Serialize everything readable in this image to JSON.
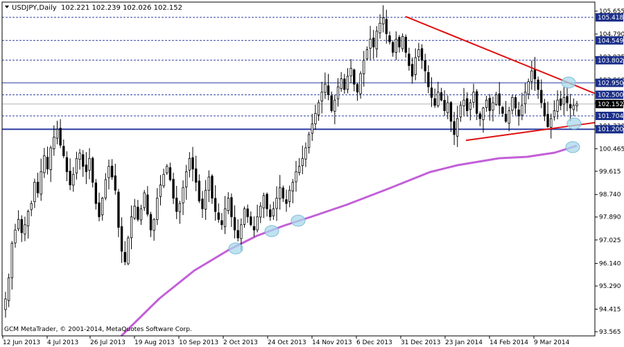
{
  "header": {
    "symbol": "USDJPY,Daily",
    "ohlc": "102.221 102.239 102.026 102.152"
  },
  "footer": {
    "copyright": "GCM MetaTrader, © 2001-2014, MetaQuotes Software Corp."
  },
  "colors": {
    "background": "#ffffff",
    "candle": "#000000",
    "moving_average": "#c35fd8",
    "triangle": "#e01010",
    "support_resistance": "#2b3fa0",
    "highlight": "#a8d8ea",
    "level_label_bg": "#1a2f8a",
    "current_price_bg": "#000000"
  },
  "chart_data": {
    "type": "candlestick",
    "x_ticks": [
      {
        "label": "12 Jun 2013",
        "date": "2013-06-12"
      },
      {
        "label": "4 Jul 2013",
        "date": "2013-07-04"
      },
      {
        "label": "26 Jul 2013",
        "date": "2013-07-26"
      },
      {
        "label": "19 Aug 2013",
        "date": "2013-08-19"
      },
      {
        "label": "10 Sep 2013",
        "date": "2013-09-10"
      },
      {
        "label": "2 Oct 2013",
        "date": "2013-10-02"
      },
      {
        "label": "24 Oct 2013",
        "date": "2013-10-24"
      },
      {
        "label": "14 Nov 2013",
        "date": "2013-11-14"
      },
      {
        "label": "6 Dec 2013",
        "date": "2013-12-06"
      },
      {
        "label": "31 Dec 2013",
        "date": "2013-12-31"
      },
      {
        "label": "23 Jan 2014",
        "date": "2014-01-23"
      },
      {
        "label": "14 Feb 2014",
        "date": "2014-02-14"
      },
      {
        "label": "9 Mar 2014",
        "date": "2014-03-09"
      }
    ],
    "y_ticks": [
      "105.655",
      "104.790",
      "103.925",
      "103.060",
      "102.195",
      "101.330",
      "100.465",
      "99.615",
      "98.740",
      "97.890",
      "97.025",
      "96.140",
      "95.290",
      "94.415",
      "93.565"
    ],
    "ylim": [
      93.565,
      105.655
    ],
    "level_labels": [
      {
        "value": 105.418,
        "label": "105.418"
      },
      {
        "value": 104.549,
        "label": "104.549"
      },
      {
        "value": 103.802,
        "label": "103.802"
      },
      {
        "value": 102.95,
        "label": "102.950"
      },
      {
        "value": 102.5,
        "label": "102.500"
      },
      {
        "value": 101.704,
        "label": "101.704"
      },
      {
        "value": 101.2,
        "label": "101.200"
      }
    ],
    "dashed_levels": [
      105.418,
      104.549,
      103.802,
      102.5,
      101.704
    ],
    "solid_levels": [
      102.95,
      101.2
    ],
    "current_price": {
      "value": 102.152,
      "label": "102.152"
    },
    "candles_daily_closes_approx": [
      94.8,
      95.6,
      96.9,
      97.4,
      97.8,
      97.3,
      97.6,
      98.1,
      98.4,
      99.2,
      98.8,
      99.6,
      100.2,
      99.7,
      100.5,
      100.9,
      101.2,
      100.6,
      100.2,
      99.6,
      99.1,
      99.5,
      100.1,
      100.3,
      99.8,
      99.6,
      100.1,
      99.2,
      98.4,
      97.9,
      98.6,
      99.3,
      99.8,
      99.4,
      98.9,
      97.5,
      96.6,
      96.2,
      97.1,
      97.9,
      98.3,
      97.8,
      98.2,
      98.8,
      98.0,
      97.4,
      97.8,
      98.6,
      99.1,
      99.5,
      99.8,
      99.3,
      98.6,
      98.1,
      98.4,
      99.0,
      99.6,
      100.1,
      99.7,
      99.2,
      98.5,
      98.2,
      98.9,
      99.4,
      98.6,
      98.1,
      97.8,
      97.6,
      98.2,
      98.6,
      97.9,
      97.4,
      97.1,
      97.6,
      98.2,
      97.9,
      97.6,
      97.4,
      97.9,
      98.3,
      98.7,
      98.2,
      97.9,
      98.2,
      98.6,
      99.0,
      98.6,
      98.4,
      98.9,
      99.2,
      99.6,
      99.8,
      100.1,
      100.5,
      101.0,
      101.4,
      101.8,
      102.2,
      102.6,
      102.9,
      102.5,
      101.9,
      102.3,
      102.8,
      103.1,
      102.7,
      103.2,
      103.5,
      102.9,
      102.6,
      103.3,
      103.8,
      104.2,
      104.6,
      104.3,
      104.9,
      105.2,
      105.4,
      104.8,
      104.5,
      104.1,
      104.6,
      104.3,
      104.7,
      104.1,
      103.6,
      103.2,
      103.9,
      104.2,
      103.8,
      103.4,
      102.8,
      102.4,
      102.1,
      102.6,
      102.3,
      101.9,
      102.2,
      101.5,
      101.0,
      101.6,
      102.1,
      102.3,
      101.9,
      102.2,
      102.6,
      101.8,
      101.6,
      102.0,
      102.3,
      101.9,
      102.2,
      102.5,
      102.1,
      101.8,
      101.5,
      101.9,
      102.4,
      102.0,
      101.7,
      102.1,
      102.6,
      103.0,
      103.4,
      103.1,
      102.7,
      102.2,
      101.7,
      101.3,
      101.6,
      101.9,
      102.3,
      102.1,
      102.4,
      102.2,
      102.0,
      102.1,
      102.152
    ]
  }
}
